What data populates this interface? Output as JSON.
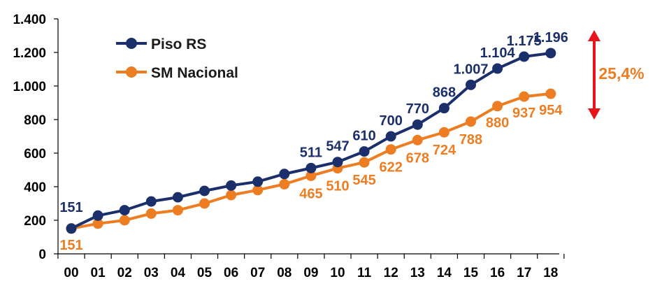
{
  "colors": {
    "piso": "#1b2f6b",
    "sm": "#ed7d22",
    "arrow": "#e8141c",
    "axis": "#000000"
  },
  "chart_data": {
    "type": "line",
    "categories": [
      "00",
      "01",
      "02",
      "03",
      "04",
      "05",
      "06",
      "07",
      "08",
      "09",
      "10",
      "11",
      "12",
      "13",
      "14",
      "15",
      "16",
      "17",
      "18"
    ],
    "ylim": [
      0,
      1400
    ],
    "yticks": [
      0,
      200,
      400,
      600,
      800,
      1000,
      1200,
      1400
    ],
    "ytick_labels": [
      "0",
      "200",
      "400",
      "600",
      "800",
      "1.000",
      "1.200",
      "1.400"
    ],
    "grid": false,
    "legend_position": "top-left",
    "series": [
      {
        "name": "Piso RS",
        "values": [
          151,
          228,
          260,
          312,
          337,
          375,
          407,
          430,
          476,
          511,
          547,
          610,
          700,
          770,
          868,
          1007,
          1104,
          1175,
          1196
        ],
        "labels": [
          "151",
          "",
          "",
          "",
          "",
          "",
          "",
          "",
          "",
          "511",
          "547",
          "610",
          "700",
          "770",
          "868",
          "1.007",
          "1.104",
          "1.175",
          "1.196"
        ]
      },
      {
        "name": "SM Nacional",
        "values": [
          151,
          180,
          200,
          240,
          260,
          300,
          350,
          380,
          415,
          465,
          510,
          545,
          622,
          678,
          724,
          788,
          880,
          937,
          954
        ],
        "labels": [
          "151",
          "",
          "",
          "",
          "",
          "",
          "",
          "",
          "",
          "465",
          "510",
          "545",
          "622",
          "678",
          "724",
          "788",
          "880",
          "937",
          "954"
        ]
      }
    ],
    "annotation": {
      "text": "25,4%",
      "from_value": 954,
      "to_value": 1196
    }
  }
}
